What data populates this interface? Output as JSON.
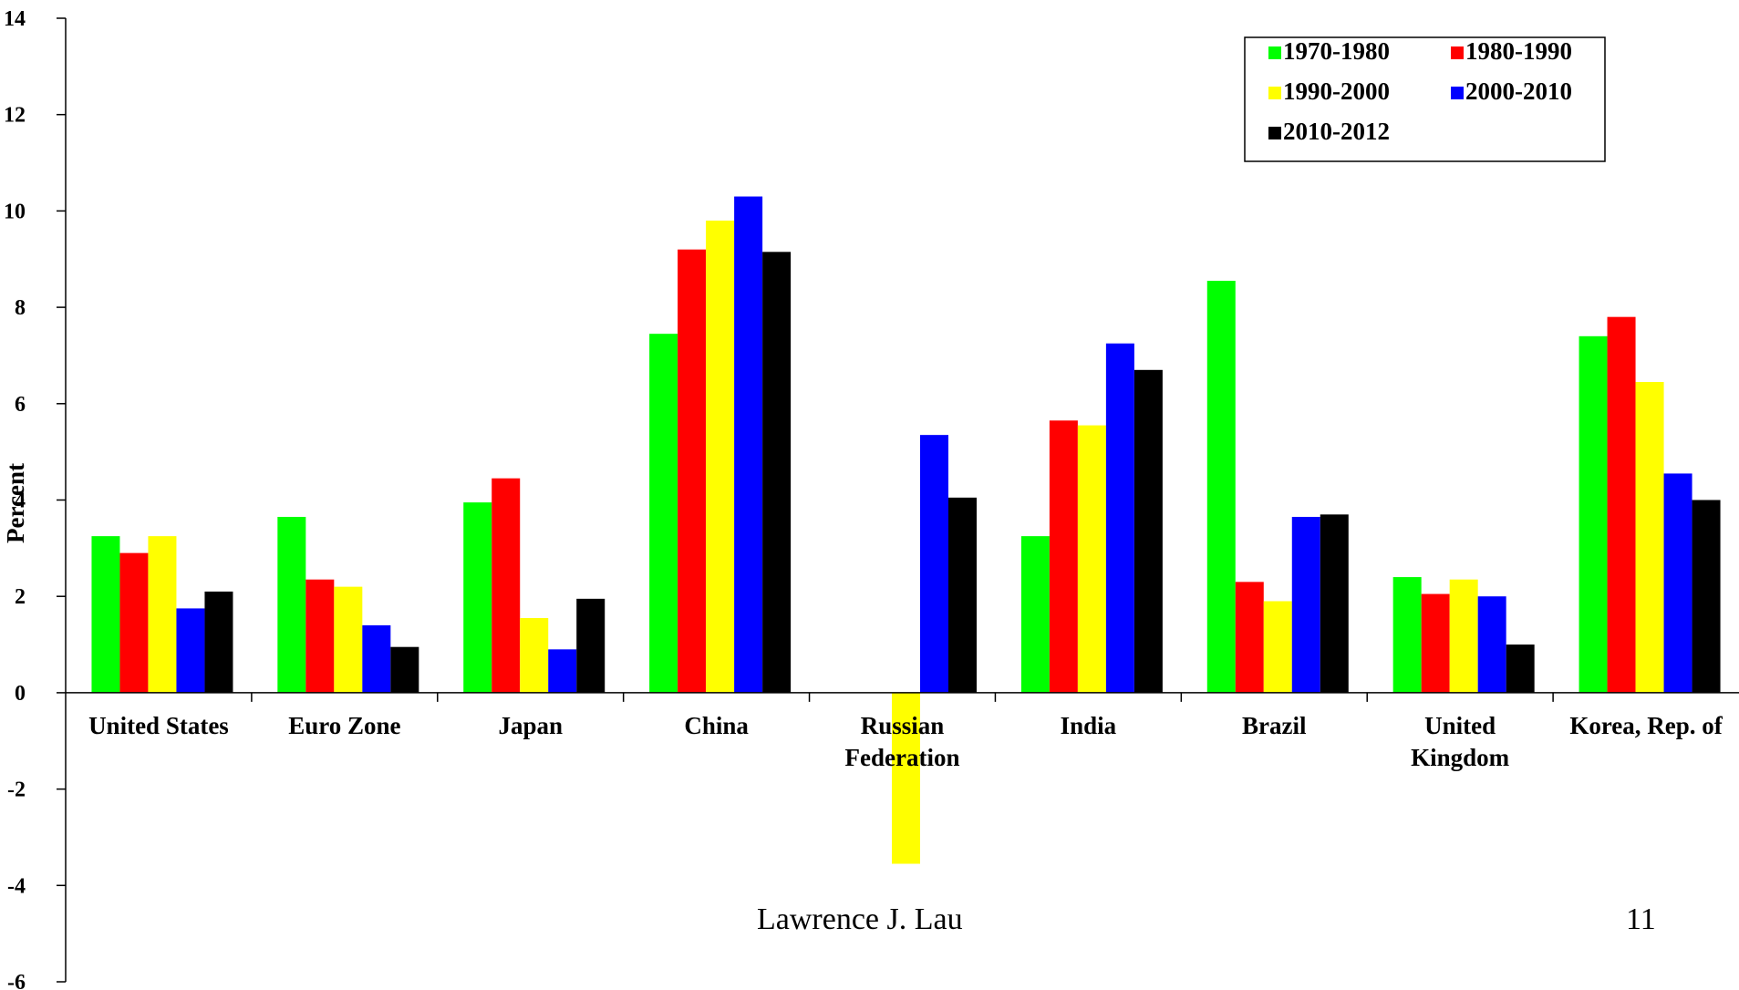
{
  "chart_data": {
    "type": "bar",
    "ylabel": "Percent",
    "ylim": [
      -6,
      14
    ],
    "yticks": [
      -6,
      -4,
      -2,
      0,
      2,
      4,
      6,
      8,
      10,
      12,
      14
    ],
    "categories": [
      [
        "United States"
      ],
      [
        "Euro Zone"
      ],
      [
        "Japan"
      ],
      [
        "China"
      ],
      [
        "Russian",
        "Federation"
      ],
      [
        "India"
      ],
      [
        "Brazil"
      ],
      [
        "United",
        "Kingdom"
      ],
      [
        "Korea, Rep. of"
      ]
    ],
    "series": [
      {
        "name": "1970-1980",
        "color": "#00ff00",
        "values": [
          3.25,
          3.65,
          3.95,
          7.45,
          null,
          3.25,
          8.55,
          2.4,
          7.4
        ]
      },
      {
        "name": "1980-1990",
        "color": "#ff0000",
        "values": [
          2.9,
          2.35,
          4.45,
          9.2,
          null,
          5.65,
          2.3,
          2.05,
          7.8
        ]
      },
      {
        "name": "1990-2000",
        "color": "#ffff00",
        "values": [
          3.25,
          2.2,
          1.55,
          9.8,
          -3.55,
          5.55,
          1.9,
          2.35,
          6.45
        ]
      },
      {
        "name": "2000-2010",
        "color": "#0000ff",
        "values": [
          1.75,
          1.4,
          0.9,
          10.3,
          5.35,
          7.25,
          3.65,
          2.0,
          4.55
        ]
      },
      {
        "name": "2010-2012",
        "color": "#000000",
        "values": [
          2.1,
          0.95,
          1.95,
          9.15,
          4.05,
          6.7,
          3.7,
          1.0,
          4.0
        ]
      }
    ],
    "legend_position": "top-right",
    "grid": false
  },
  "footer": {
    "author": "Lawrence J. Lau",
    "page_number": "11"
  }
}
